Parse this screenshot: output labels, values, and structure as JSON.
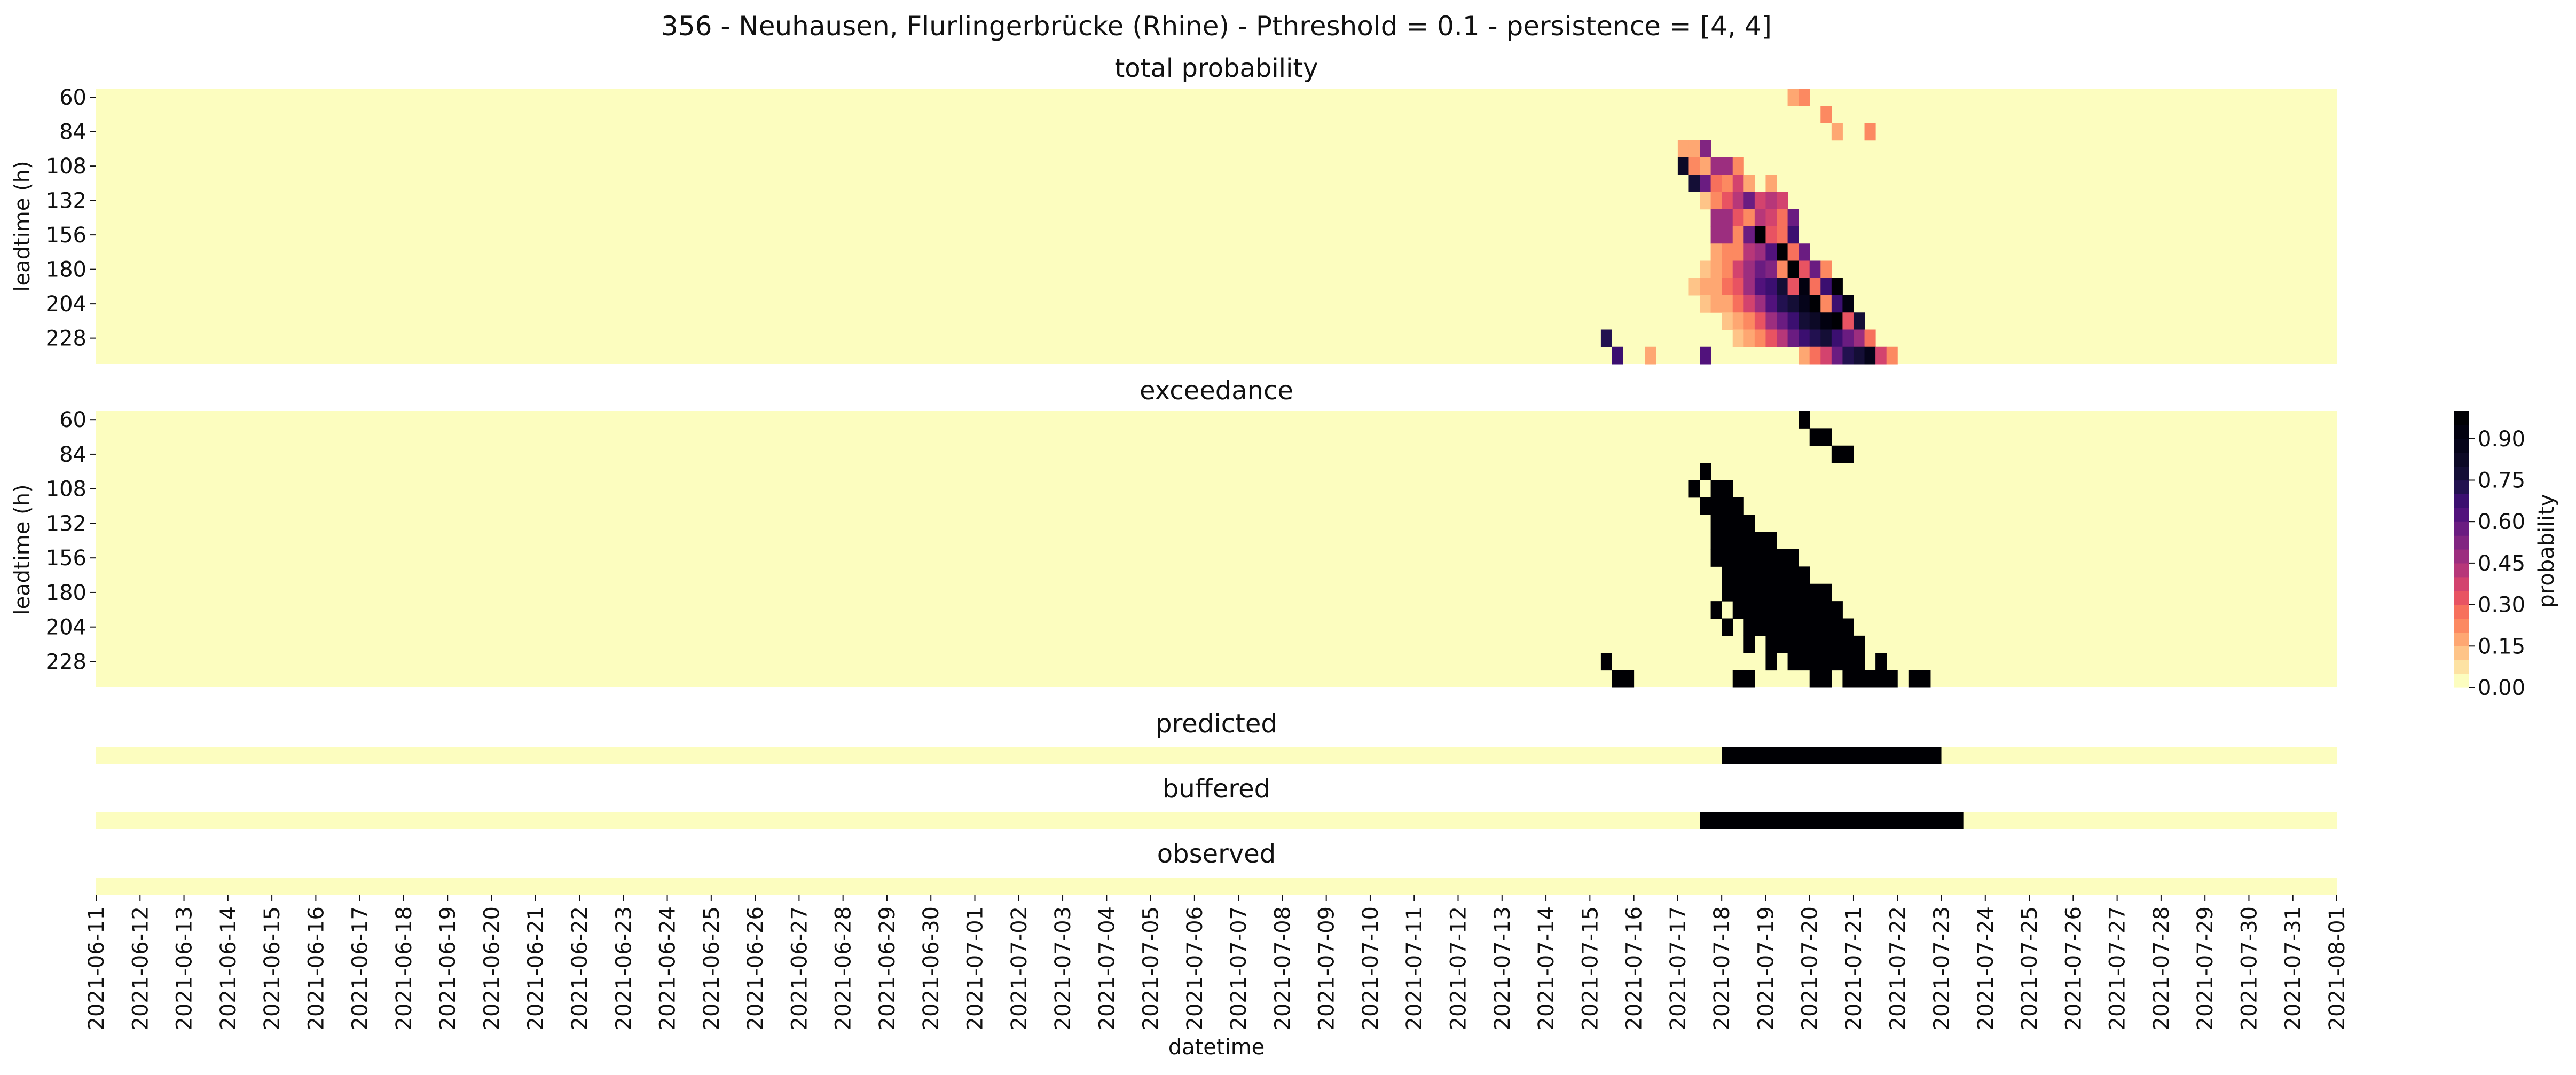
{
  "chart_data": {
    "type": "heatmap",
    "title": "356 - Neuhausen, Flurlingerbrücke (Rhine) - Pthreshold = 0.1 - persistence = [4, 4]",
    "xlabel": "datetime",
    "dates": [
      "2021-06-11",
      "2021-06-12",
      "2021-06-13",
      "2021-06-14",
      "2021-06-15",
      "2021-06-16",
      "2021-06-17",
      "2021-06-18",
      "2021-06-19",
      "2021-06-20",
      "2021-06-21",
      "2021-06-22",
      "2021-06-23",
      "2021-06-24",
      "2021-06-25",
      "2021-06-26",
      "2021-06-27",
      "2021-06-28",
      "2021-06-29",
      "2021-06-30",
      "2021-07-01",
      "2021-07-02",
      "2021-07-03",
      "2021-07-04",
      "2021-07-05",
      "2021-07-06",
      "2021-07-07",
      "2021-07-08",
      "2021-07-09",
      "2021-07-10",
      "2021-07-11",
      "2021-07-12",
      "2021-07-13",
      "2021-07-14",
      "2021-07-15",
      "2021-07-16",
      "2021-07-17",
      "2021-07-18",
      "2021-07-19",
      "2021-07-20",
      "2021-07-21",
      "2021-07-22",
      "2021-07-23",
      "2021-07-24",
      "2021-07-25",
      "2021-07-26",
      "2021-07-27",
      "2021-07-28",
      "2021-07-29",
      "2021-07-30",
      "2021-07-31",
      "2021-08-01"
    ],
    "leadtime_rows": [
      60,
      72,
      84,
      96,
      108,
      120,
      132,
      144,
      156,
      168,
      180,
      192,
      204,
      216,
      228,
      240
    ],
    "ytick_labels": [
      "60",
      "84",
      "108",
      "132",
      "156",
      "180",
      "204",
      "228"
    ],
    "ylabel": "leadtime (h)",
    "colorbar": {
      "label": "probability",
      "ticks": [
        "0.00",
        "0.15",
        "0.30",
        "0.45",
        "0.60",
        "0.75",
        "0.90"
      ],
      "range": [
        0,
        1
      ],
      "steps": 20,
      "colormap": "magma_r",
      "colors": [
        "#fcfdbf",
        "#fde2a3",
        "#fec488",
        "#fea772",
        "#fc8961",
        "#f7705c",
        "#e85362",
        "#d3436e",
        "#b73779",
        "#9c2e7f",
        "#812581",
        "#6a1c81",
        "#51127c",
        "#3b0f70",
        "#221150",
        "#140e36",
        "#0c0926",
        "#05041a",
        "#020110",
        "#000004"
      ]
    },
    "panels": {
      "total": {
        "title": "total probability",
        "cells": [
          {
            "row": 0,
            "day": 38.5,
            "p": 0.18
          },
          {
            "row": 0,
            "day": 38.75,
            "p": 0.2
          },
          {
            "row": 1,
            "day": 39.25,
            "p": 0.2
          },
          {
            "row": 2,
            "day": 39.5,
            "p": 0.15
          },
          {
            "row": 2,
            "day": 40.25,
            "p": 0.2
          },
          {
            "row": 3,
            "day": 36.0,
            "p": 0.15
          },
          {
            "row": 3,
            "day": 36.25,
            "p": 0.15
          },
          {
            "row": 3,
            "day": 36.5,
            "p": 0.5
          },
          {
            "row": 4,
            "day": 36.0,
            "p": 0.8
          },
          {
            "row": 4,
            "day": 36.25,
            "p": 0.2
          },
          {
            "row": 4,
            "day": 36.5,
            "p": 0.15
          },
          {
            "row": 4,
            "day": 36.75,
            "p": 0.45
          },
          {
            "row": 4,
            "day": 37.0,
            "p": 0.45
          },
          {
            "row": 4,
            "day": 37.25,
            "p": 0.2
          },
          {
            "row": 5,
            "day": 36.25,
            "p": 0.75
          },
          {
            "row": 5,
            "day": 36.5,
            "p": 0.55
          },
          {
            "row": 5,
            "day": 36.75,
            "p": 0.25
          },
          {
            "row": 5,
            "day": 37.0,
            "p": 0.2
          },
          {
            "row": 5,
            "day": 37.25,
            "p": 0.35
          },
          {
            "row": 5,
            "day": 37.5,
            "p": 0.15
          },
          {
            "row": 5,
            "day": 38.0,
            "p": 0.15
          },
          {
            "row": 6,
            "day": 36.5,
            "p": 0.1
          },
          {
            "row": 6,
            "day": 36.75,
            "p": 0.2
          },
          {
            "row": 6,
            "day": 37.0,
            "p": 0.3
          },
          {
            "row": 6,
            "day": 37.25,
            "p": 0.4
          },
          {
            "row": 6,
            "day": 37.5,
            "p": 0.55
          },
          {
            "row": 6,
            "day": 37.75,
            "p": 0.35
          },
          {
            "row": 6,
            "day": 38.0,
            "p": 0.4
          },
          {
            "row": 6,
            "day": 38.25,
            "p": 0.35
          },
          {
            "row": 7,
            "day": 36.75,
            "p": 0.45
          },
          {
            "row": 7,
            "day": 37.0,
            "p": 0.45
          },
          {
            "row": 7,
            "day": 37.25,
            "p": 0.3
          },
          {
            "row": 7,
            "day": 37.5,
            "p": 0.2
          },
          {
            "row": 7,
            "day": 37.75,
            "p": 0.4
          },
          {
            "row": 7,
            "day": 38.0,
            "p": 0.35
          },
          {
            "row": 7,
            "day": 38.25,
            "p": 0.25
          },
          {
            "row": 7,
            "day": 38.5,
            "p": 0.55
          },
          {
            "row": 8,
            "day": 36.75,
            "p": 0.45
          },
          {
            "row": 8,
            "day": 37.0,
            "p": 0.45
          },
          {
            "row": 8,
            "day": 37.25,
            "p": 0.2
          },
          {
            "row": 8,
            "day": 37.5,
            "p": 0.55
          },
          {
            "row": 8,
            "day": 37.75,
            "p": 1.0
          },
          {
            "row": 8,
            "day": 38.0,
            "p": 0.3
          },
          {
            "row": 8,
            "day": 38.25,
            "p": 0.25
          },
          {
            "row": 8,
            "day": 38.5,
            "p": 0.65
          },
          {
            "row": 9,
            "day": 36.75,
            "p": 0.15
          },
          {
            "row": 9,
            "day": 37.0,
            "p": 0.2
          },
          {
            "row": 9,
            "day": 37.25,
            "p": 0.2
          },
          {
            "row": 9,
            "day": 37.5,
            "p": 0.4
          },
          {
            "row": 9,
            "day": 37.75,
            "p": 0.45
          },
          {
            "row": 9,
            "day": 38.0,
            "p": 0.6
          },
          {
            "row": 9,
            "day": 38.25,
            "p": 1.0
          },
          {
            "row": 9,
            "day": 38.5,
            "p": 0.25
          },
          {
            "row": 9,
            "day": 38.75,
            "p": 0.55
          },
          {
            "row": 10,
            "day": 36.5,
            "p": 0.1
          },
          {
            "row": 10,
            "day": 36.75,
            "p": 0.15
          },
          {
            "row": 10,
            "day": 37.0,
            "p": 0.2
          },
          {
            "row": 10,
            "day": 37.25,
            "p": 0.35
          },
          {
            "row": 10,
            "day": 37.5,
            "p": 0.45
          },
          {
            "row": 10,
            "day": 37.75,
            "p": 0.55
          },
          {
            "row": 10,
            "day": 38.0,
            "p": 0.5
          },
          {
            "row": 10,
            "day": 38.25,
            "p": 0.2
          },
          {
            "row": 10,
            "day": 38.5,
            "p": 1.0
          },
          {
            "row": 10,
            "day": 38.75,
            "p": 0.3
          },
          {
            "row": 10,
            "day": 39.0,
            "p": 0.55
          },
          {
            "row": 10,
            "day": 39.25,
            "p": 0.2
          },
          {
            "row": 11,
            "day": 36.25,
            "p": 0.1
          },
          {
            "row": 11,
            "day": 36.5,
            "p": 0.15
          },
          {
            "row": 11,
            "day": 36.75,
            "p": 0.15
          },
          {
            "row": 11,
            "day": 37.0,
            "p": 0.25
          },
          {
            "row": 11,
            "day": 37.25,
            "p": 0.3
          },
          {
            "row": 11,
            "day": 37.5,
            "p": 0.45
          },
          {
            "row": 11,
            "day": 37.75,
            "p": 0.6
          },
          {
            "row": 11,
            "day": 38.0,
            "p": 0.65
          },
          {
            "row": 11,
            "day": 38.25,
            "p": 0.75
          },
          {
            "row": 11,
            "day": 38.5,
            "p": 0.3
          },
          {
            "row": 11,
            "day": 38.75,
            "p": 0.9
          },
          {
            "row": 11,
            "day": 39.0,
            "p": 0.25
          },
          {
            "row": 11,
            "day": 39.25,
            "p": 0.65
          },
          {
            "row": 11,
            "day": 39.5,
            "p": 0.95
          },
          {
            "row": 12,
            "day": 36.5,
            "p": 0.1
          },
          {
            "row": 12,
            "day": 36.75,
            "p": 0.15
          },
          {
            "row": 12,
            "day": 37.0,
            "p": 0.15
          },
          {
            "row": 12,
            "day": 37.25,
            "p": 0.25
          },
          {
            "row": 12,
            "day": 37.5,
            "p": 0.35
          },
          {
            "row": 12,
            "day": 37.75,
            "p": 0.45
          },
          {
            "row": 12,
            "day": 38.0,
            "p": 0.6
          },
          {
            "row": 12,
            "day": 38.25,
            "p": 0.7
          },
          {
            "row": 12,
            "day": 38.5,
            "p": 0.75
          },
          {
            "row": 12,
            "day": 38.75,
            "p": 0.85
          },
          {
            "row": 12,
            "day": 39.0,
            "p": 0.95
          },
          {
            "row": 12,
            "day": 39.25,
            "p": 0.2
          },
          {
            "row": 12,
            "day": 39.5,
            "p": 0.65
          },
          {
            "row": 12,
            "day": 39.75,
            "p": 0.9
          },
          {
            "row": 13,
            "day": 37.0,
            "p": 0.1
          },
          {
            "row": 13,
            "day": 37.25,
            "p": 0.15
          },
          {
            "row": 13,
            "day": 37.5,
            "p": 0.2
          },
          {
            "row": 13,
            "day": 37.75,
            "p": 0.3
          },
          {
            "row": 13,
            "day": 38.0,
            "p": 0.45
          },
          {
            "row": 13,
            "day": 38.25,
            "p": 0.55
          },
          {
            "row": 13,
            "day": 38.5,
            "p": 0.65
          },
          {
            "row": 13,
            "day": 38.75,
            "p": 0.75
          },
          {
            "row": 13,
            "day": 39.0,
            "p": 0.8
          },
          {
            "row": 13,
            "day": 39.25,
            "p": 0.9
          },
          {
            "row": 13,
            "day": 39.5,
            "p": 0.95
          },
          {
            "row": 13,
            "day": 39.75,
            "p": 0.3
          },
          {
            "row": 13,
            "day": 40.0,
            "p": 0.75
          },
          {
            "row": 14,
            "day": 34.25,
            "p": 0.7
          },
          {
            "row": 14,
            "day": 37.25,
            "p": 0.1
          },
          {
            "row": 14,
            "day": 37.5,
            "p": 0.15
          },
          {
            "row": 14,
            "day": 37.75,
            "p": 0.2
          },
          {
            "row": 14,
            "day": 38.0,
            "p": 0.3
          },
          {
            "row": 14,
            "day": 38.25,
            "p": 0.4
          },
          {
            "row": 14,
            "day": 38.5,
            "p": 0.55
          },
          {
            "row": 14,
            "day": 38.75,
            "p": 0.65
          },
          {
            "row": 14,
            "day": 39.0,
            "p": 0.7
          },
          {
            "row": 14,
            "day": 39.25,
            "p": 0.75
          },
          {
            "row": 14,
            "day": 39.5,
            "p": 0.65
          },
          {
            "row": 14,
            "day": 39.75,
            "p": 0.55
          },
          {
            "row": 14,
            "day": 40.0,
            "p": 0.45
          },
          {
            "row": 14,
            "day": 40.25,
            "p": 0.25
          },
          {
            "row": 15,
            "day": 34.5,
            "p": 0.65
          },
          {
            "row": 15,
            "day": 35.25,
            "p": 0.15
          },
          {
            "row": 15,
            "day": 36.5,
            "p": 0.6
          },
          {
            "row": 15,
            "day": 38.75,
            "p": 0.15
          },
          {
            "row": 15,
            "day": 39.0,
            "p": 0.25
          },
          {
            "row": 15,
            "day": 39.25,
            "p": 0.35
          },
          {
            "row": 15,
            "day": 39.5,
            "p": 0.55
          },
          {
            "row": 15,
            "day": 39.75,
            "p": 0.7
          },
          {
            "row": 15,
            "day": 40.0,
            "p": 0.75
          },
          {
            "row": 15,
            "day": 40.25,
            "p": 0.85
          },
          {
            "row": 15,
            "day": 40.5,
            "p": 0.35
          },
          {
            "row": 15,
            "day": 40.75,
            "p": 0.2
          }
        ]
      },
      "exceedance": {
        "title": "exceedance",
        "segments": [
          {
            "row": 0,
            "start": 38.75,
            "end": 39.0
          },
          {
            "row": 1,
            "start": 39.0,
            "end": 39.5
          },
          {
            "row": 2,
            "start": 39.5,
            "end": 40.0
          },
          {
            "row": 3,
            "start": 36.5,
            "end": 36.75
          },
          {
            "row": 4,
            "start": 36.25,
            "end": 36.5
          },
          {
            "row": 4,
            "start": 36.75,
            "end": 37.25
          },
          {
            "row": 5,
            "start": 36.5,
            "end": 37.5
          },
          {
            "row": 6,
            "start": 36.75,
            "end": 37.75
          },
          {
            "row": 7,
            "start": 36.75,
            "end": 38.25
          },
          {
            "row": 8,
            "start": 36.75,
            "end": 38.75
          },
          {
            "row": 9,
            "start": 37.0,
            "end": 39.0
          },
          {
            "row": 10,
            "start": 37.0,
            "end": 39.5
          },
          {
            "row": 11,
            "start": 36.75,
            "end": 37.0
          },
          {
            "row": 11,
            "start": 37.25,
            "end": 39.75
          },
          {
            "row": 12,
            "start": 37.0,
            "end": 37.25
          },
          {
            "row": 12,
            "start": 37.5,
            "end": 40.0
          },
          {
            "row": 13,
            "start": 37.5,
            "end": 37.75
          },
          {
            "row": 13,
            "start": 38.0,
            "end": 40.25
          },
          {
            "row": 14,
            "start": 34.25,
            "end": 34.5
          },
          {
            "row": 14,
            "start": 38.0,
            "end": 38.25
          },
          {
            "row": 14,
            "start": 38.5,
            "end": 40.25
          },
          {
            "row": 14,
            "start": 40.5,
            "end": 40.75
          },
          {
            "row": 15,
            "start": 34.5,
            "end": 35.0
          },
          {
            "row": 15,
            "start": 37.25,
            "end": 37.75
          },
          {
            "row": 15,
            "start": 39.0,
            "end": 39.5
          },
          {
            "row": 15,
            "start": 39.75,
            "end": 41.0
          },
          {
            "row": 15,
            "start": 41.25,
            "end": 41.75
          }
        ]
      },
      "predicted": {
        "title": "predicted",
        "start": 37.0,
        "end": 42.0
      },
      "buffered": {
        "title": "buffered",
        "start": 36.5,
        "end": 42.5
      },
      "observed": {
        "title": "observed"
      }
    }
  }
}
